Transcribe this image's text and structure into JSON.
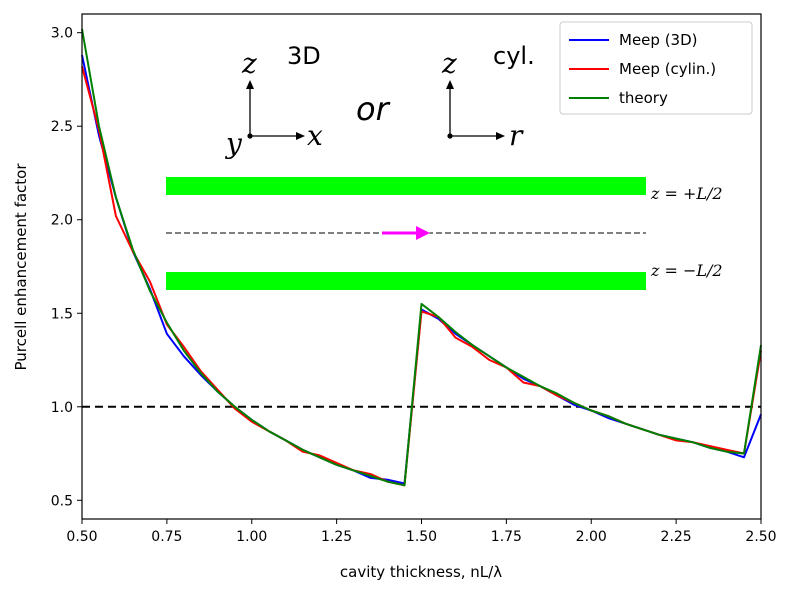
{
  "chart_data": {
    "type": "line",
    "xlabel": "cavity thickness, nL/λ",
    "ylabel": "Purcell enhancement factor",
    "xlim": [
      0.5,
      2.5
    ],
    "ylim": [
      0.4,
      3.1
    ],
    "xticks": [
      "0.50",
      "0.75",
      "1.00",
      "1.25",
      "1.50",
      "1.75",
      "2.00",
      "2.25",
      "2.50"
    ],
    "yticks": [
      "0.5",
      "1.0",
      "1.5",
      "2.0",
      "2.5",
      "3.0"
    ],
    "reference_line": {
      "y": 1.0,
      "style": "dashed",
      "color": "#000000"
    },
    "legend": {
      "position": "top-right"
    },
    "series": [
      {
        "name": "Meep (3D)",
        "color": "#0000ff",
        "x": [
          0.5,
          0.55,
          0.6,
          0.65,
          0.7,
          0.75,
          0.8,
          0.85,
          0.9,
          0.95,
          1.0,
          1.05,
          1.1,
          1.15,
          1.2,
          1.25,
          1.3,
          1.35,
          1.4,
          1.45,
          1.5,
          1.55,
          1.6,
          1.65,
          1.7,
          1.75,
          1.8,
          1.85,
          1.9,
          1.95,
          2.0,
          2.05,
          2.1,
          2.15,
          2.2,
          2.25,
          2.3,
          2.35,
          2.4,
          2.45,
          2.5
        ],
        "y": [
          2.88,
          2.45,
          2.12,
          1.83,
          1.63,
          1.39,
          1.27,
          1.17,
          1.08,
          1.0,
          0.93,
          0.87,
          0.82,
          0.77,
          0.73,
          0.69,
          0.66,
          0.62,
          0.61,
          0.59,
          1.52,
          1.47,
          1.39,
          1.33,
          1.27,
          1.21,
          1.15,
          1.11,
          1.06,
          1.01,
          0.98,
          0.94,
          0.91,
          0.88,
          0.85,
          0.83,
          0.81,
          0.78,
          0.76,
          0.73,
          0.96
        ]
      },
      {
        "name": "Meep (cylin.)",
        "color": "#ff0000",
        "x": [
          0.5,
          0.55,
          0.6,
          0.65,
          0.7,
          0.75,
          0.8,
          0.85,
          0.9,
          0.95,
          1.0,
          1.05,
          1.1,
          1.15,
          1.2,
          1.25,
          1.3,
          1.35,
          1.4,
          1.45,
          1.5,
          1.55,
          1.6,
          1.65,
          1.7,
          1.75,
          1.8,
          1.85,
          1.9,
          1.95,
          2.0,
          2.05,
          2.1,
          2.15,
          2.2,
          2.25,
          2.3,
          2.35,
          2.4,
          2.45,
          2.5
        ],
        "y": [
          2.82,
          2.48,
          2.02,
          1.83,
          1.67,
          1.44,
          1.32,
          1.19,
          1.09,
          0.99,
          0.92,
          0.87,
          0.82,
          0.76,
          0.74,
          0.7,
          0.66,
          0.64,
          0.6,
          0.58,
          1.51,
          1.48,
          1.37,
          1.32,
          1.25,
          1.21,
          1.13,
          1.11,
          1.06,
          1.02,
          0.98,
          0.95,
          0.91,
          0.88,
          0.85,
          0.82,
          0.81,
          0.79,
          0.77,
          0.75,
          1.3
        ]
      },
      {
        "name": "theory",
        "color": "#008000",
        "x": [
          0.5,
          0.55,
          0.6,
          0.65,
          0.7,
          0.75,
          0.8,
          0.85,
          0.9,
          0.95,
          1.0,
          1.05,
          1.1,
          1.15,
          1.2,
          1.25,
          1.3,
          1.35,
          1.4,
          1.45,
          1.5,
          1.55,
          1.6,
          1.65,
          1.7,
          1.75,
          1.8,
          1.85,
          1.9,
          1.95,
          2.0,
          2.05,
          2.1,
          2.15,
          2.2,
          2.25,
          2.3,
          2.35,
          2.4,
          2.45,
          2.5
        ],
        "y": [
          3.02,
          2.5,
          2.12,
          1.84,
          1.62,
          1.45,
          1.3,
          1.18,
          1.08,
          1.0,
          0.93,
          0.87,
          0.82,
          0.77,
          0.73,
          0.69,
          0.66,
          0.63,
          0.6,
          0.58,
          1.55,
          1.48,
          1.4,
          1.33,
          1.27,
          1.21,
          1.16,
          1.11,
          1.07,
          1.02,
          0.98,
          0.95,
          0.91,
          0.88,
          0.85,
          0.83,
          0.81,
          0.78,
          0.76,
          0.75,
          1.33
        ]
      }
    ]
  },
  "inset": {
    "label_3d": "3D",
    "label_or": "or",
    "label_cyl": "cyl.",
    "axis_z_left": "z",
    "axis_y": "y",
    "axis_x": "x",
    "axis_z_right": "z",
    "axis_r": "r",
    "plate_top_label": "z = +L/2",
    "plate_bottom_label": "z = −L/2",
    "plate_color": "#00ff00",
    "source_color": "#ff00ff"
  }
}
